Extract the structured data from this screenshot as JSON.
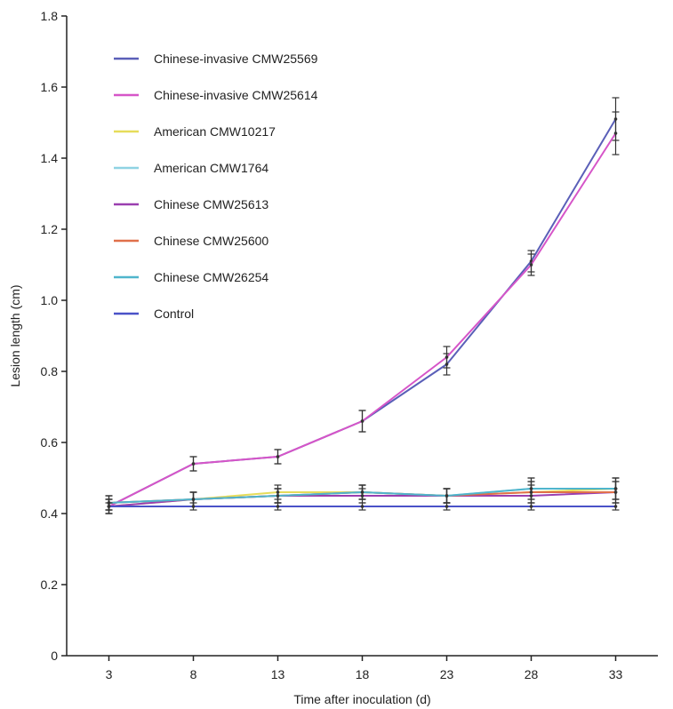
{
  "chart_data": {
    "type": "line",
    "xlabel": "Time after inoculation (d)",
    "ylabel": "Lesion length (cm)",
    "x": [
      3,
      8,
      13,
      18,
      23,
      28,
      33
    ],
    "xlim": [
      0.5,
      35.5
    ],
    "ylim": [
      0,
      1.8
    ],
    "yticks": [
      "0",
      "0.2",
      "0.4",
      "0.6",
      "0.8",
      "1.0",
      "1.2",
      "1.4",
      "1.6",
      "1.8"
    ],
    "grid": false,
    "legend_position": "top-left",
    "series": [
      {
        "name": "Chinese-invasive CMW25569",
        "color": "#5a5fb8",
        "values": [
          0.42,
          0.54,
          0.56,
          0.66,
          0.82,
          1.11,
          1.51
        ],
        "errors": [
          0.02,
          0.02,
          0.02,
          0.03,
          0.03,
          0.03,
          0.06
        ]
      },
      {
        "name": "Chinese-invasive CMW25614",
        "color": "#d655c8",
        "values": [
          0.42,
          0.54,
          0.56,
          0.66,
          0.84,
          1.1,
          1.47
        ],
        "errors": [
          0.02,
          0.02,
          0.02,
          0.03,
          0.03,
          0.03,
          0.06
        ]
      },
      {
        "name": "American CMW10217",
        "color": "#e6dc5a",
        "values": [
          0.42,
          0.44,
          0.46,
          0.46,
          0.45,
          0.46,
          0.47
        ],
        "errors": [
          0.02,
          0.02,
          0.02,
          0.02,
          0.02,
          0.03,
          0.03
        ]
      },
      {
        "name": "American CMW1764",
        "color": "#8fd3e3",
        "values": [
          0.43,
          0.44,
          0.45,
          0.46,
          0.45,
          0.47,
          0.47
        ],
        "errors": [
          0.02,
          0.02,
          0.02,
          0.02,
          0.02,
          0.03,
          0.03
        ]
      },
      {
        "name": "Chinese CMW25613",
        "color": "#9a3fb0",
        "values": [
          0.42,
          0.44,
          0.45,
          0.45,
          0.45,
          0.45,
          0.46
        ],
        "errors": [
          0.02,
          0.02,
          0.02,
          0.02,
          0.02,
          0.03,
          0.03
        ]
      },
      {
        "name": "Chinese CMW25600",
        "color": "#e0704a",
        "values": [
          0.43,
          0.44,
          0.45,
          0.46,
          0.45,
          0.46,
          0.46
        ],
        "errors": [
          0.02,
          0.02,
          0.02,
          0.02,
          0.02,
          0.03,
          0.03
        ]
      },
      {
        "name": "Chinese CMW26254",
        "color": "#4fb5cc",
        "values": [
          0.43,
          0.44,
          0.45,
          0.46,
          0.45,
          0.47,
          0.47
        ],
        "errors": [
          0.02,
          0.02,
          0.02,
          0.02,
          0.02,
          0.03,
          0.03
        ]
      },
      {
        "name": "Control",
        "color": "#4a52c8",
        "values": [
          0.42,
          0.42,
          0.42,
          0.42,
          0.42,
          0.42,
          0.42
        ],
        "errors": [
          0.01,
          0.01,
          0.01,
          0.01,
          0.01,
          0.01,
          0.01
        ]
      }
    ]
  }
}
